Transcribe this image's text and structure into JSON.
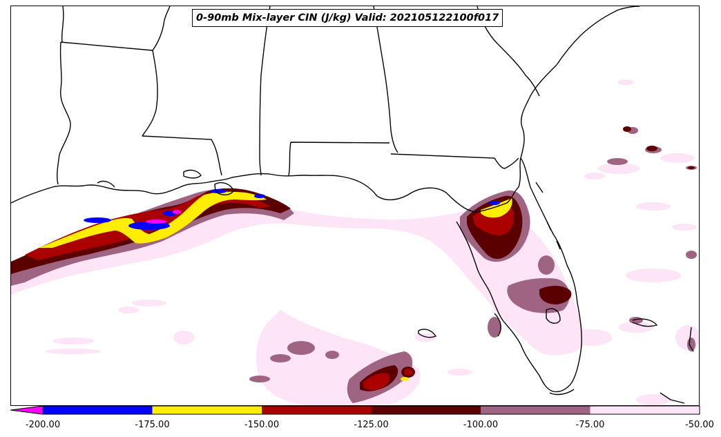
{
  "title": "0-90mb Mix-layer CIN (J/kg) Valid: 202105122100f017",
  "colorbar": {
    "ticks": [
      "-200.00",
      "-175.00",
      "-150.00",
      "-125.00",
      "-100.00",
      "-75.00",
      "-50.00"
    ],
    "extend": "min",
    "bins": [
      {
        "from": -200,
        "to": -175,
        "color": "#0000ff"
      },
      {
        "from": -175,
        "to": -150,
        "color": "#ffee00"
      },
      {
        "from": -150,
        "to": -125,
        "color": "#aa0000"
      },
      {
        "from": -125,
        "to": -100,
        "color": "#5a0000"
      },
      {
        "from": -100,
        "to": -75,
        "color": "#9e6481"
      },
      {
        "from": -75,
        "to": -50,
        "color": "#fde4f6"
      }
    ],
    "under_color": "#ff00ff"
  },
  "map": {
    "region": "US Gulf Coast and Florida",
    "field_colors": {
      "very_light": "#fde4f6",
      "mauve": "#9e6481",
      "dark_maroon": "#5a0000",
      "red": "#aa0000",
      "yellow": "#ffee00",
      "blue": "#0000ff",
      "magenta": "#ff00ff"
    },
    "outline_color": "#000000"
  }
}
